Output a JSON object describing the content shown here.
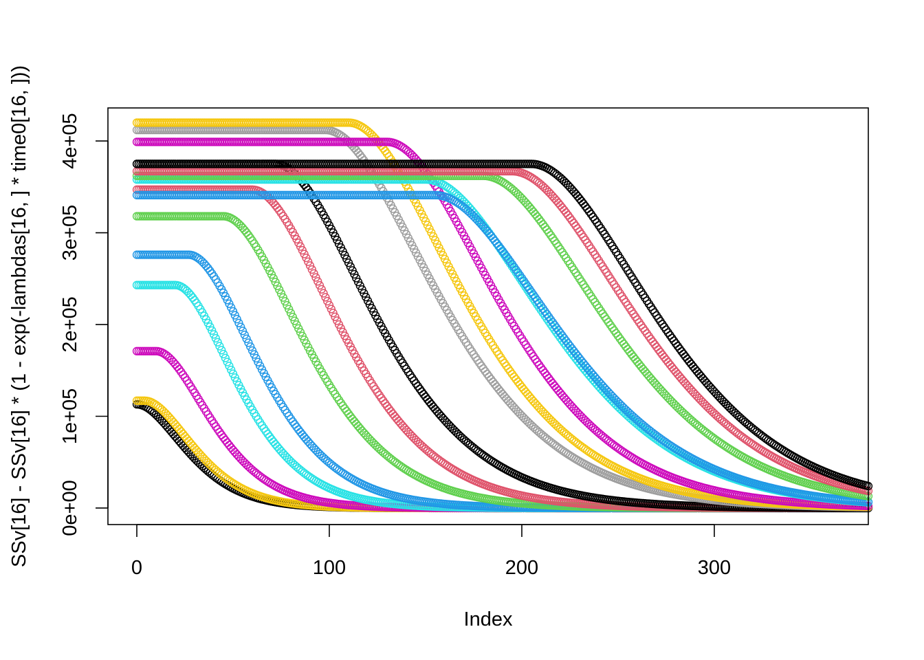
{
  "chart_data": {
    "type": "scatter",
    "title": "",
    "xlabel": "Index",
    "ylabel": "SSv[16] - SSv[16] * (1 - exp(-lambdas[16, ] * time0[16, ]))",
    "xlim": [
      -15,
      380
    ],
    "ylim": [
      -18000,
      436000
    ],
    "x_ticks": [
      0,
      100,
      200,
      300
    ],
    "x_tick_labels": [
      "0",
      "100",
      "200",
      "300"
    ],
    "y_ticks": [
      0,
      100000,
      200000,
      300000,
      400000
    ],
    "y_tick_labels": [
      "0e+00",
      "1e+05",
      "2e+05",
      "3e+05",
      "4e+05"
    ],
    "grid": false,
    "legend": "none",
    "marker": "open-circle",
    "x_range": [
      0,
      380
    ],
    "series": [
      {
        "color": "#000000",
        "plateau": 113000,
        "onset": 0,
        "rate": 0.05
      },
      {
        "color": "#F5C710",
        "plateau": 117000,
        "onset": 4,
        "rate": 0.05
      },
      {
        "color": "#CD0BBC",
        "plateau": 171000,
        "onset": 10,
        "rate": 0.045
      },
      {
        "color": "#28E2E5",
        "plateau": 243000,
        "onset": 20,
        "rate": 0.04
      },
      {
        "color": "#2297E6",
        "plateau": 276000,
        "onset": 27,
        "rate": 0.035
      },
      {
        "color": "#61D04F",
        "plateau": 318000,
        "onset": 45,
        "rate": 0.03
      },
      {
        "color": "#DF536B",
        "plateau": 347000,
        "onset": 60,
        "rate": 0.028
      },
      {
        "color": "#000000",
        "plateau": 375000,
        "onset": 72,
        "rate": 0.025
      },
      {
        "color": "#9E9E9E",
        "plateau": 412000,
        "onset": 98,
        "rate": 0.022
      },
      {
        "color": "#F5C710",
        "plateau": 420000,
        "onset": 110,
        "rate": 0.022
      },
      {
        "color": "#CD0BBC",
        "plateau": 399000,
        "onset": 130,
        "rate": 0.022
      },
      {
        "color": "#28E2E5",
        "plateau": 358000,
        "onset": 150,
        "rate": 0.02
      },
      {
        "color": "#2297E6",
        "plateau": 341000,
        "onset": 155,
        "rate": 0.02
      },
      {
        "color": "#61D04F",
        "plateau": 362000,
        "onset": 180,
        "rate": 0.02
      },
      {
        "color": "#DF536B",
        "plateau": 367000,
        "onset": 195,
        "rate": 0.02
      },
      {
        "color": "#000000",
        "plateau": 375000,
        "onset": 205,
        "rate": 0.02
      }
    ]
  }
}
